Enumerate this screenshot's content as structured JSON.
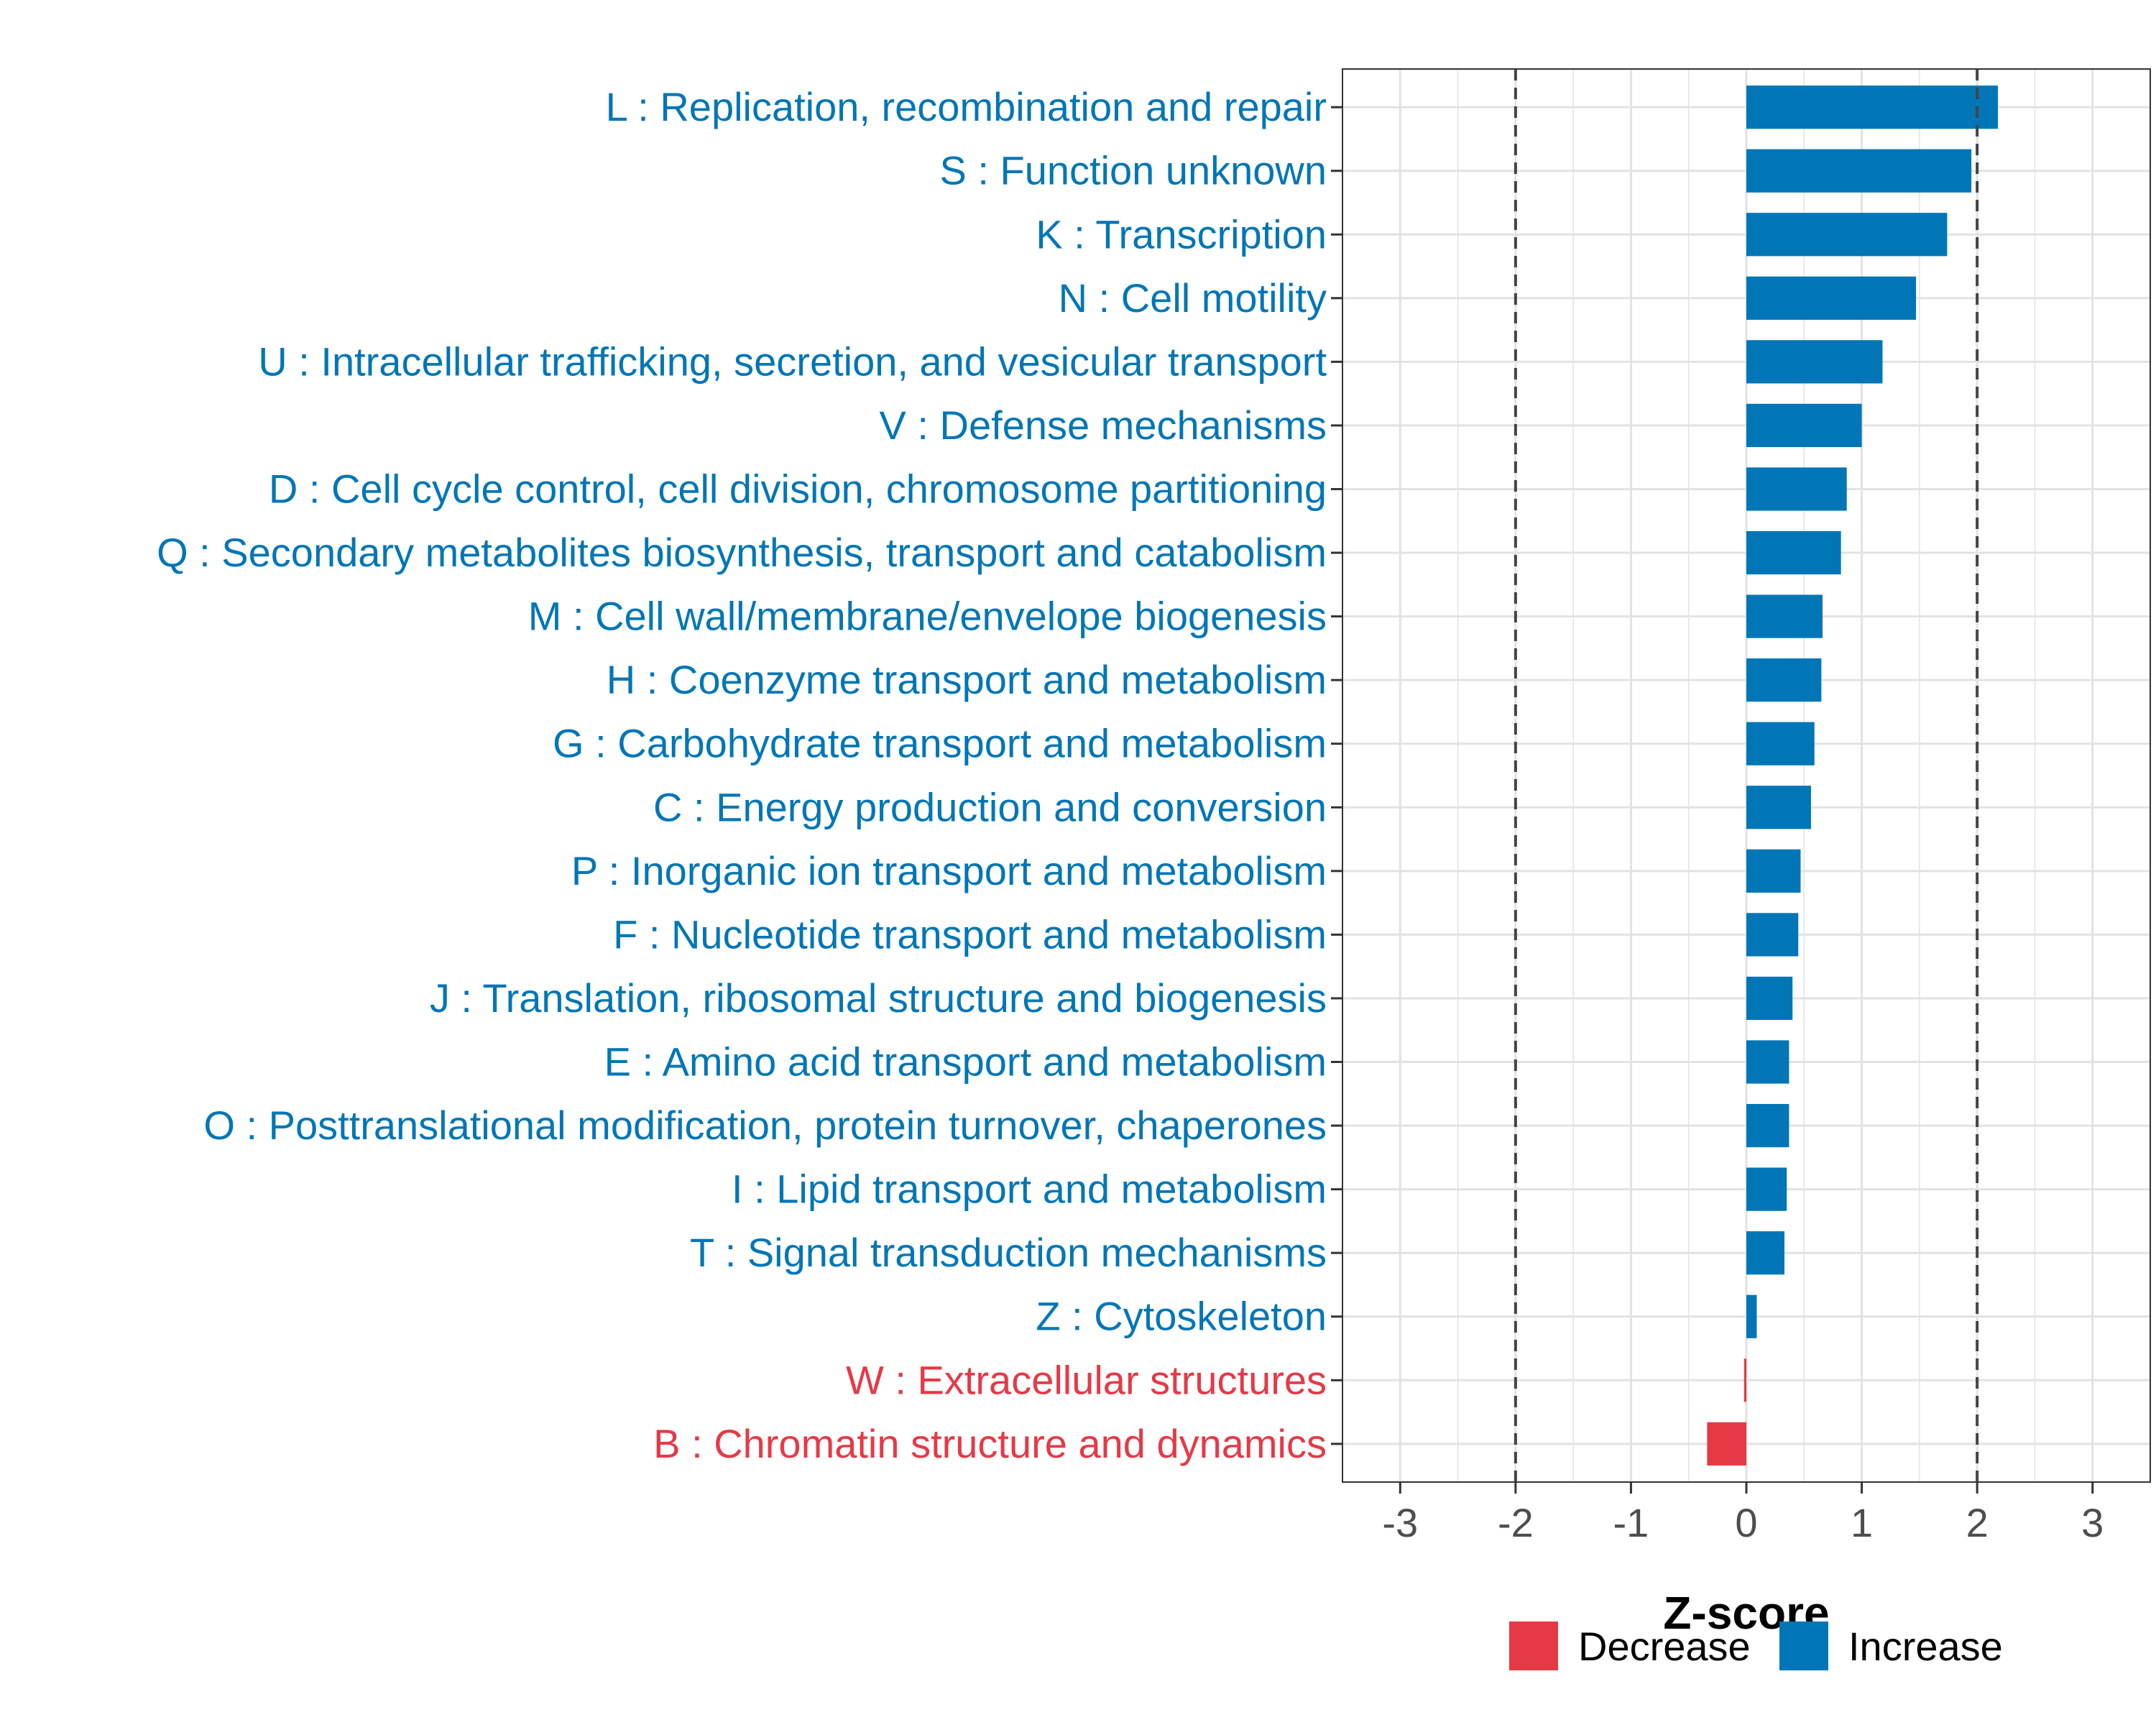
{
  "chart_data": {
    "type": "bar",
    "orientation": "horizontal",
    "title": "",
    "xlabel": "Z-score",
    "ylabel": "",
    "xlim": [
      -3.5,
      3.5
    ],
    "xticks": [
      "-3",
      "-2",
      "-1",
      "0",
      "1",
      "2",
      "3"
    ],
    "xtick_values": [
      -3,
      -2,
      -1,
      0,
      1,
      2,
      3
    ],
    "reference_lines": [
      -2,
      2
    ],
    "grid": true,
    "categories": [
      "L : Replication, recombination and repair",
      "S : Function unknown",
      "K : Transcription",
      "N : Cell motility",
      "U : Intracellular trafficking, secretion, and vesicular transport",
      "V : Defense mechanisms",
      "D : Cell cycle control, cell division, chromosome partitioning",
      "Q : Secondary metabolites biosynthesis, transport and catabolism",
      "M : Cell wall/membrane/envelope biogenesis",
      "H : Coenzyme transport and metabolism",
      "G : Carbohydrate transport and metabolism",
      "C : Energy production and conversion",
      "P : Inorganic ion transport and metabolism",
      "F : Nucleotide transport and metabolism",
      "J : Translation, ribosomal structure and biogenesis",
      "E : Amino acid transport and metabolism",
      "O : Posttranslational modification, protein turnover, chaperones",
      "I : Lipid transport and metabolism",
      "T : Signal transduction mechanisms",
      "Z : Cytoskeleton",
      "W : Extracellular structures",
      "B : Chromatin structure and dynamics"
    ],
    "values": [
      2.18,
      1.95,
      1.74,
      1.47,
      1.18,
      1.0,
      0.87,
      0.82,
      0.66,
      0.65,
      0.59,
      0.56,
      0.47,
      0.45,
      0.4,
      0.37,
      0.37,
      0.35,
      0.33,
      0.09,
      -0.02,
      -0.34
    ],
    "direction": [
      "Increase",
      "Increase",
      "Increase",
      "Increase",
      "Increase",
      "Increase",
      "Increase",
      "Increase",
      "Increase",
      "Increase",
      "Increase",
      "Increase",
      "Increase",
      "Increase",
      "Increase",
      "Increase",
      "Increase",
      "Increase",
      "Increase",
      "Increase",
      "Decrease",
      "Decrease"
    ],
    "legend": [
      {
        "label": "Decrease",
        "color": "#e63946"
      },
      {
        "label": "Increase",
        "color": "#0076b6"
      }
    ],
    "legend_position": "bottom"
  }
}
